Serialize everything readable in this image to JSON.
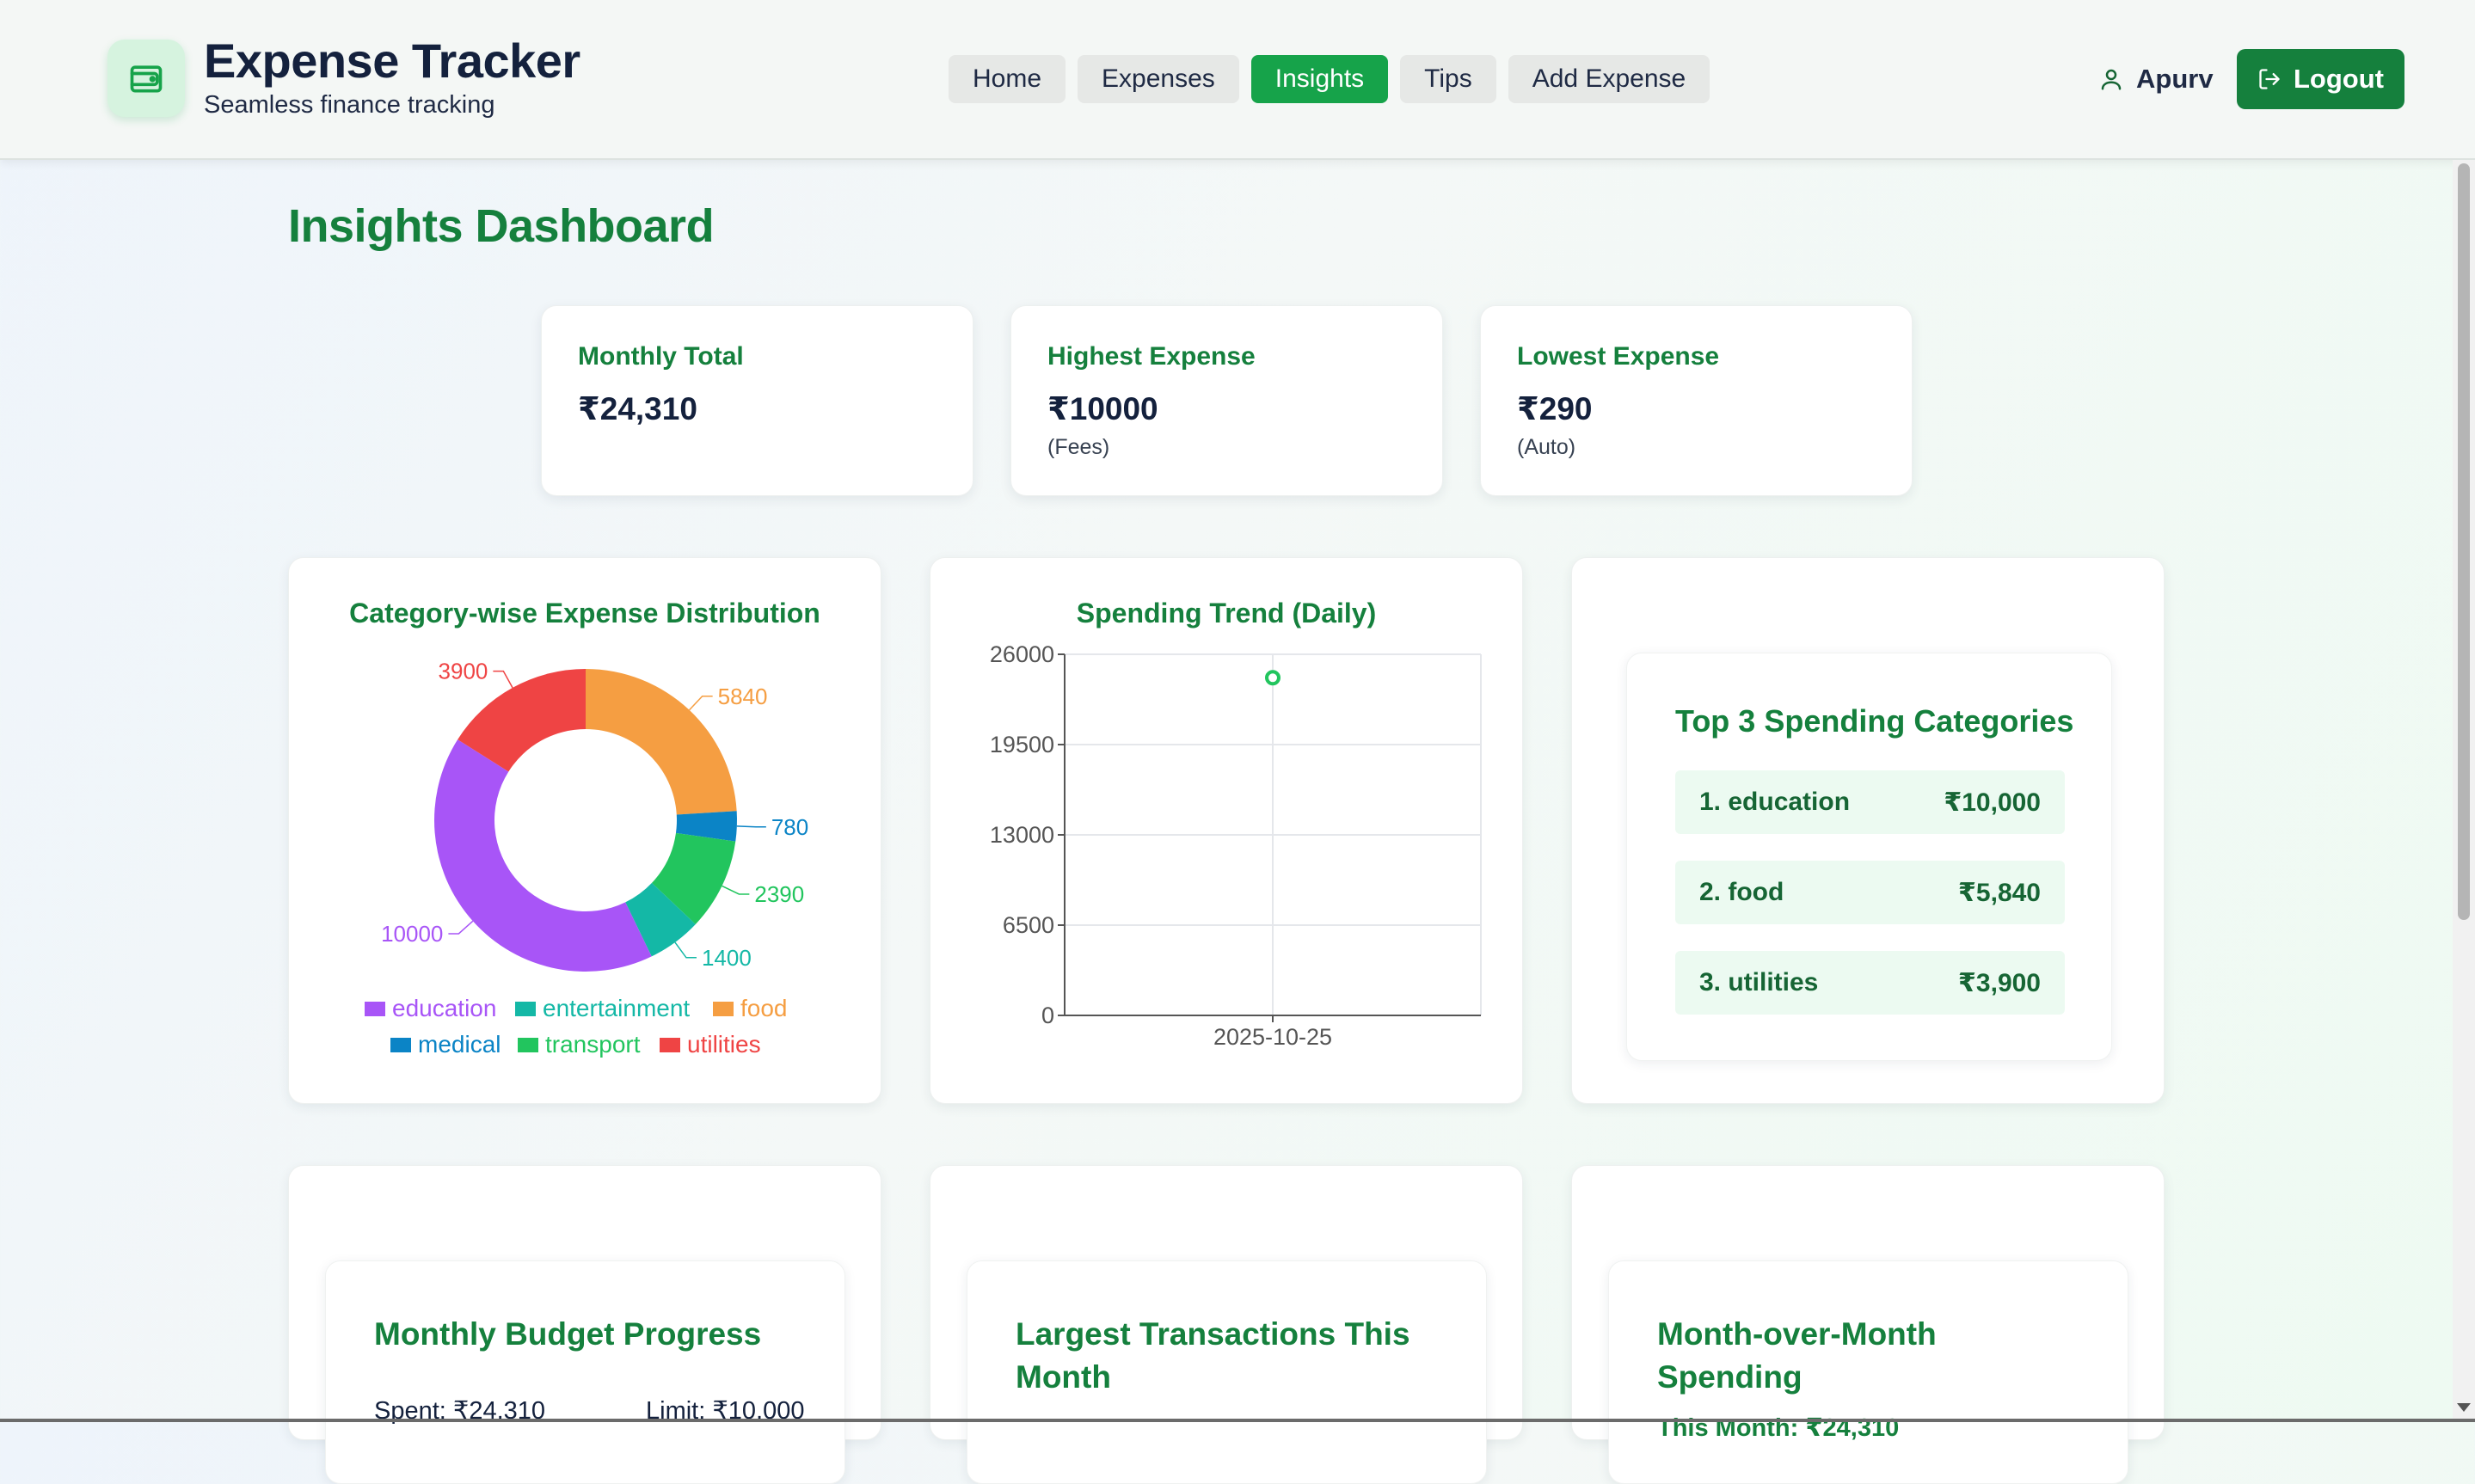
{
  "brand": {
    "title": "Expense Tracker",
    "subtitle": "Seamless finance tracking",
    "icon": "wallet-icon",
    "color": "#16a34a"
  },
  "nav": {
    "items": [
      {
        "label": "Home",
        "active": false
      },
      {
        "label": "Expenses",
        "active": false
      },
      {
        "label": "Insights",
        "active": true
      },
      {
        "label": "Tips",
        "active": false
      },
      {
        "label": "Add Expense",
        "active": false
      }
    ]
  },
  "user": {
    "name": "Apurv",
    "icon": "user-icon"
  },
  "logout": {
    "label": "Logout",
    "icon": "logout-icon"
  },
  "page": {
    "title": "Insights Dashboard"
  },
  "stats": [
    {
      "label": "Monthly Total",
      "value": "₹24,310",
      "note": ""
    },
    {
      "label": "Highest Expense",
      "value": "₹10000",
      "note": "(Fees)"
    },
    {
      "label": "Lowest Expense",
      "value": "₹290",
      "note": "(Auto)"
    }
  ],
  "chart_data": [
    {
      "type": "pie",
      "variant": "donut",
      "title": "Category-wise Expense Distribution",
      "categories": [
        "education",
        "entertainment",
        "food",
        "medical",
        "transport",
        "utilities"
      ],
      "values": [
        10000,
        1400,
        5840,
        780,
        2390,
        3900
      ],
      "colors": {
        "education": "#a855f7",
        "entertainment": "#14b8a6",
        "food": "#f59e42",
        "medical": "#0b84c6",
        "transport": "#22c55e",
        "utilities": "#ef4444"
      },
      "legend": "bottom"
    },
    {
      "type": "scatter",
      "title": "Spending Trend (Daily)",
      "x": [
        "2025-10-25"
      ],
      "y": [
        24310
      ],
      "ylim": [
        0,
        26000
      ],
      "yticks": [
        0,
        6500,
        13000,
        19500,
        26000
      ],
      "xticks": [
        "2025-10-25"
      ],
      "grid": true,
      "color": "#22c55e"
    }
  ],
  "top_categories": {
    "title": "Top 3 Spending Categories",
    "items": [
      {
        "label": "1. education",
        "amount": "₹10,000"
      },
      {
        "label": "2. food",
        "amount": "₹5,840"
      },
      {
        "label": "3. utilities",
        "amount": "₹3,900"
      }
    ]
  },
  "budget": {
    "title": "Monthly Budget Progress",
    "spent": "Spent: ₹24,310",
    "limit": "Limit: ₹10,000"
  },
  "largest": {
    "title_line1": "Largest Transactions This",
    "title_line2": "Month"
  },
  "mom": {
    "title_line1": "Month-over-Month",
    "title_line2": "Spending",
    "this_month": "This Month: ₹24,310"
  }
}
